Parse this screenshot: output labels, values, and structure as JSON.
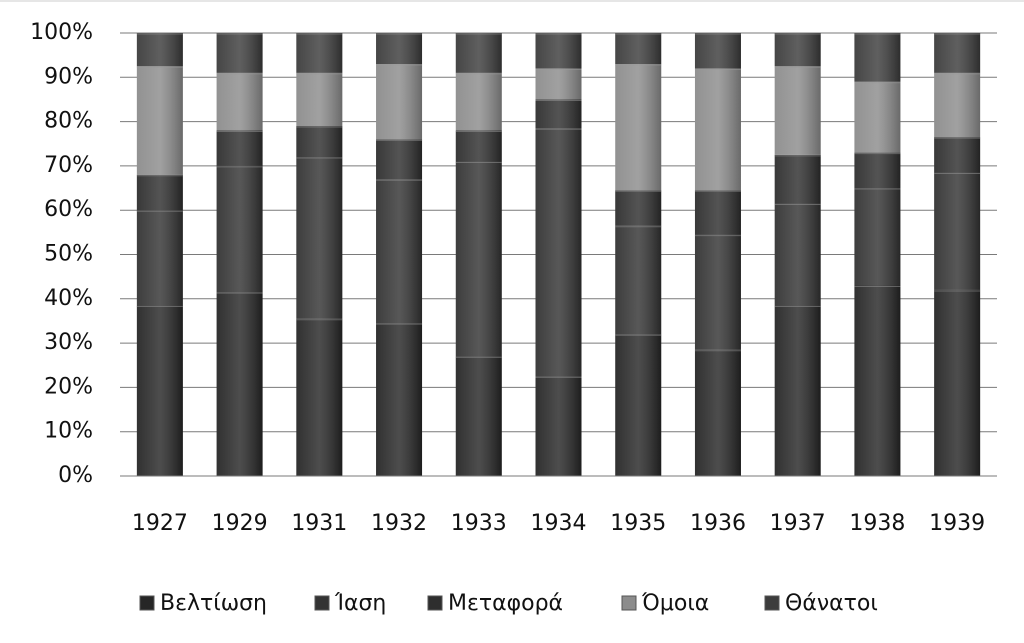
{
  "chart_data": {
    "type": "stacked_bar_100",
    "categories": [
      "1927",
      "1929",
      "1931",
      "1932",
      "1933",
      "1934",
      "1935",
      "1936",
      "1937",
      "1938",
      "1939"
    ],
    "series": [
      {
        "name": "Βελτίωση",
        "color": "#262626",
        "values": [
          38.5,
          41.5,
          35.5,
          34.5,
          27,
          22.5,
          32,
          28.5,
          38.5,
          43,
          42
        ]
      },
      {
        "name": "Ίαση",
        "color": "#333333",
        "values": [
          21.5,
          28.5,
          36.5,
          32.5,
          44,
          56,
          24.5,
          26,
          23,
          22,
          26.5
        ]
      },
      {
        "name": "Μεταφορά",
        "color": "#2e2e2e",
        "values": [
          8,
          8,
          7,
          9,
          7,
          6.5,
          8,
          10,
          11,
          8,
          8
        ]
      },
      {
        "name": "Όμοια",
        "color": "#8c8c8c",
        "values": [
          24.5,
          13,
          12,
          17,
          13,
          7,
          28.5,
          27.5,
          20,
          16,
          14.5
        ]
      },
      {
        "name": "Θάνατοι",
        "color": "#3c3c3c",
        "values": [
          7.5,
          9,
          9,
          7,
          9,
          8,
          7,
          8,
          7.5,
          11,
          9
        ]
      }
    ],
    "ylim": [
      0,
      100
    ],
    "yticks": [
      {
        "value": 0,
        "label": "0%"
      },
      {
        "value": 10,
        "label": "10%"
      },
      {
        "value": 20,
        "label": "20%"
      },
      {
        "value": 30,
        "label": "30%"
      },
      {
        "value": 40,
        "label": "40%"
      },
      {
        "value": 50,
        "label": "50%"
      },
      {
        "value": 60,
        "label": "60%"
      },
      {
        "value": 70,
        "label": "70%"
      },
      {
        "value": 80,
        "label": "80%"
      },
      {
        "value": 90,
        "label": "90%"
      },
      {
        "value": 100,
        "label": "100%"
      }
    ],
    "grid": true,
    "legend": "bottom"
  }
}
